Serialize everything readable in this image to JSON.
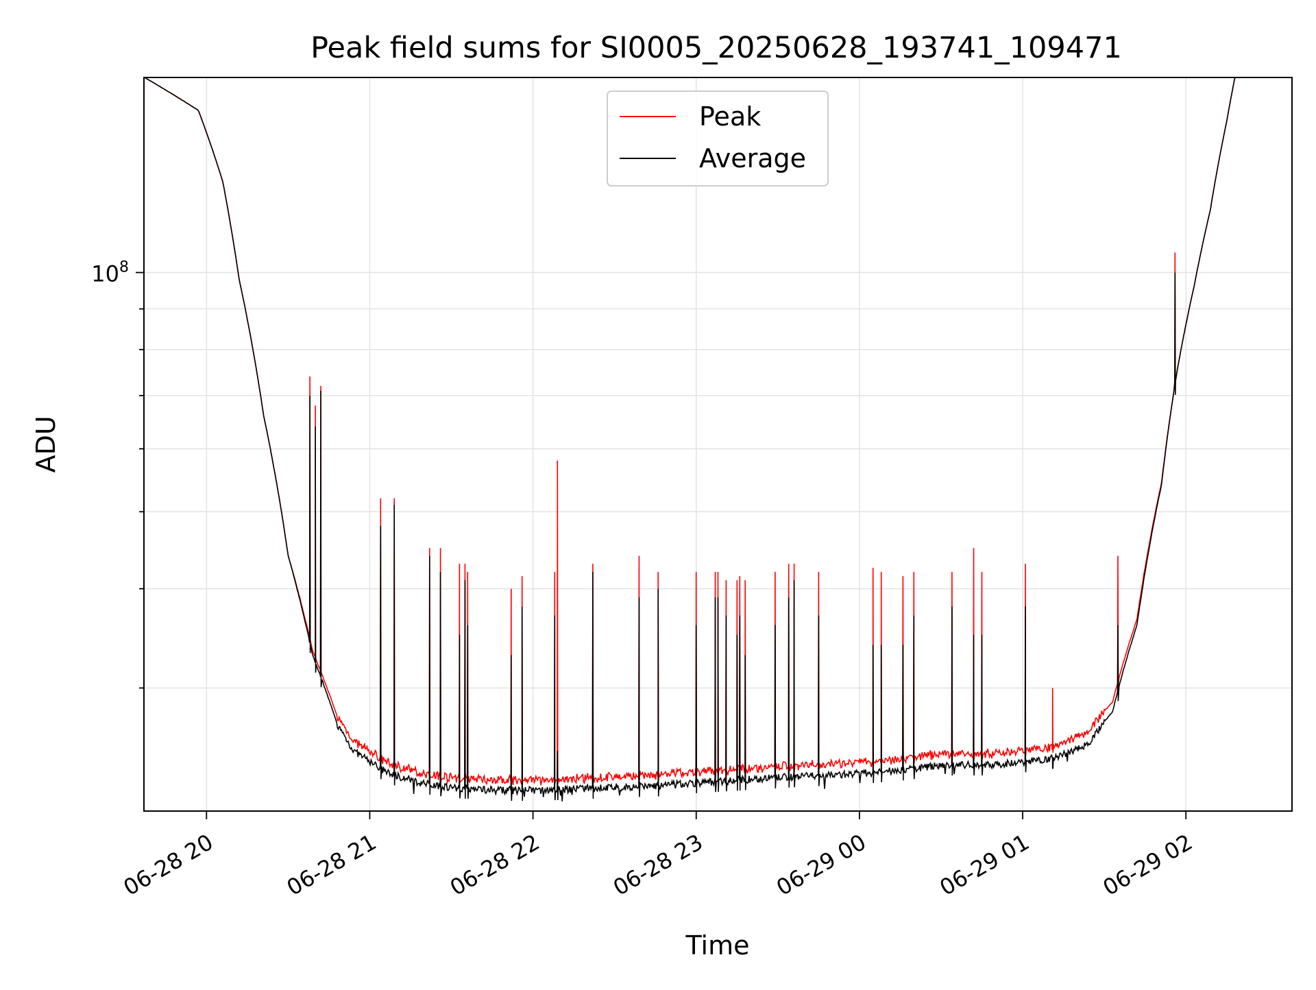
{
  "chart_data": {
    "type": "line",
    "title": "Peak field sums for SI0005_20250628_193741_109471",
    "xlabel": "Time",
    "ylabel": "ADU",
    "y_scale": "log",
    "y_tick_label": {
      "base": "10",
      "exponent": "8"
    },
    "x_ticks": [
      "06-28 20",
      "06-28 21",
      "06-28 22",
      "06-28 23",
      "06-29 00",
      "06-29 01",
      "06-29 02"
    ],
    "x_range": [
      "2025-06-28 19:37",
      "2025-06-29 02:39"
    ],
    "y_range": [
      21000000,
      176000000
    ],
    "grid": true,
    "legend_position": "top-center",
    "series": [
      {
        "name": "Peak",
        "color": "#ff0000"
      },
      {
        "name": "Average",
        "color": "#000000"
      }
    ],
    "baseline_hours_since_midnight_0628": [
      19.62,
      19.95,
      20.1,
      20.2,
      20.35,
      20.5,
      20.65,
      20.8,
      20.9,
      21.1,
      21.3,
      21.5,
      21.8,
      22.0,
      22.3,
      22.5,
      22.8,
      23.0,
      23.3,
      23.6,
      24.0,
      24.3,
      24.5,
      24.8,
      25.0,
      25.2,
      25.4,
      25.55,
      25.7,
      25.85,
      25.95,
      26.05,
      26.15,
      26.25,
      26.3,
      26.65
    ],
    "average_baseline": [
      176000000,
      160000000,
      130000000,
      98000000,
      66000000,
      44000000,
      33000000,
      27000000,
      25000000,
      23500000,
      22800000,
      22500000,
      22300000,
      22300000,
      22400000,
      22500000,
      22600000,
      22800000,
      23000000,
      23200000,
      23400000,
      23700000,
      24000000,
      24000000,
      24200000,
      24500000,
      25500000,
      28000000,
      36000000,
      54000000,
      76000000,
      96000000,
      120000000,
      155000000,
      176000000,
      176000000
    ],
    "peak_offset": [
      0,
      0,
      0,
      0,
      0,
      0,
      400000,
      600000,
      700000,
      650000,
      600000,
      600000,
      600000,
      600000,
      600000,
      650000,
      650000,
      700000,
      700000,
      700000,
      700000,
      750000,
      750000,
      750000,
      800000,
      800000,
      900000,
      800000,
      600000,
      300000,
      0,
      0,
      0,
      0,
      0,
      0
    ],
    "spikes": [
      {
        "t": "20:42",
        "peak": 72000000,
        "average": 71000000
      },
      {
        "t": "20:40",
        "peak": 68000000,
        "average": 64000000
      },
      {
        "t": "20:38",
        "peak": 74000000,
        "average": 70000000
      },
      {
        "t": "21:04",
        "peak": 52000000,
        "average": 48000000
      },
      {
        "t": "21:09",
        "peak": 52000000,
        "average": 51000000
      },
      {
        "t": "21:22",
        "peak": 45000000,
        "average": 44000000
      },
      {
        "t": "21:26",
        "peak": 45000000,
        "average": 42000000
      },
      {
        "t": "21:33",
        "peak": 43000000,
        "average": 35000000
      },
      {
        "t": "21:35",
        "peak": 43000000,
        "average": 41000000
      },
      {
        "t": "21:36",
        "peak": 42000000,
        "average": 36000000
      },
      {
        "t": "21:52",
        "peak": 40000000,
        "average": 33000000
      },
      {
        "t": "21:56",
        "peak": 41500000,
        "average": 38000000
      },
      {
        "t": "22:08",
        "peak": 42000000,
        "average": 37000000
      },
      {
        "t": "22:09",
        "peak": 58000000,
        "average": 25000000
      },
      {
        "t": "22:22",
        "peak": 43000000,
        "average": 42000000
      },
      {
        "t": "22:39",
        "peak": 44000000,
        "average": 39000000
      },
      {
        "t": "22:46",
        "peak": 42000000,
        "average": 40000000
      },
      {
        "t": "23:00",
        "peak": 42000000,
        "average": 36000000
      },
      {
        "t": "23:07",
        "peak": 42000000,
        "average": 39000000
      },
      {
        "t": "23:08",
        "peak": 42000000,
        "average": 39000000
      },
      {
        "t": "23:11",
        "peak": 41000000,
        "average": 37000000
      },
      {
        "t": "23:15",
        "peak": 41000000,
        "average": 35000000
      },
      {
        "t": "23:16",
        "peak": 41500000,
        "average": 37000000
      },
      {
        "t": "23:18",
        "peak": 41000000,
        "average": 33000000
      },
      {
        "t": "23:29",
        "peak": 42000000,
        "average": 36000000
      },
      {
        "t": "23:34",
        "peak": 43000000,
        "average": 39000000
      },
      {
        "t": "23:36",
        "peak": 43000000,
        "average": 41000000
      },
      {
        "t": "23:45",
        "peak": 42000000,
        "average": 37000000
      },
      {
        "t": "00:05",
        "peak": 42500000,
        "average": 34000000
      },
      {
        "t": "00:08",
        "peak": 42000000,
        "average": 34000000
      },
      {
        "t": "00:16",
        "peak": 41500000,
        "average": 34000000
      },
      {
        "t": "00:20",
        "peak": 42000000,
        "average": 37000000
      },
      {
        "t": "00:34",
        "peak": 42000000,
        "average": 38000000
      },
      {
        "t": "00:42",
        "peak": 45000000,
        "average": 35000000
      },
      {
        "t": "00:45",
        "peak": 42000000,
        "average": 35000000
      },
      {
        "t": "01:01",
        "peak": 43000000,
        "average": 38000000
      },
      {
        "t": "01:11",
        "peak": 30000000,
        "average": 23800000
      },
      {
        "t": "01:35",
        "peak": 44000000,
        "average": 36000000
      },
      {
        "t": "01:56",
        "peak": 106000000,
        "average": 100000000
      }
    ]
  }
}
